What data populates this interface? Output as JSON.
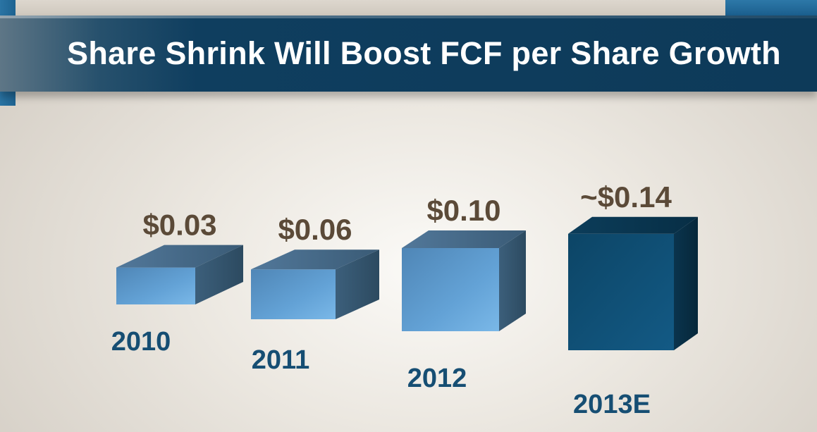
{
  "title": "Share Shrink Will Boost FCF per Share Growth",
  "chart_data": {
    "type": "bar",
    "title": "Share Shrink Will Boost FCF per Share Growth",
    "categories": [
      "2010",
      "2011",
      "2012",
      "2013E"
    ],
    "values": [
      0.03,
      0.06,
      0.1,
      0.14
    ],
    "value_labels": [
      "$0.03",
      "$0.06",
      "$0.10",
      "~$0.14"
    ],
    "estimated": [
      false,
      false,
      false,
      true
    ],
    "style": "3d-boxes",
    "xlabel": "",
    "ylabel": "",
    "grid": false,
    "legend": "none",
    "colors": {
      "actual_front": "#5f9ed3",
      "actual_top": "#3f6584",
      "actual_side": "#36566f",
      "estimate_front": "#0f4e74",
      "estimate_top": "#083650",
      "estimate_side": "#072c42",
      "value_label": "#5b4a38",
      "category_label": "#164e73"
    }
  }
}
